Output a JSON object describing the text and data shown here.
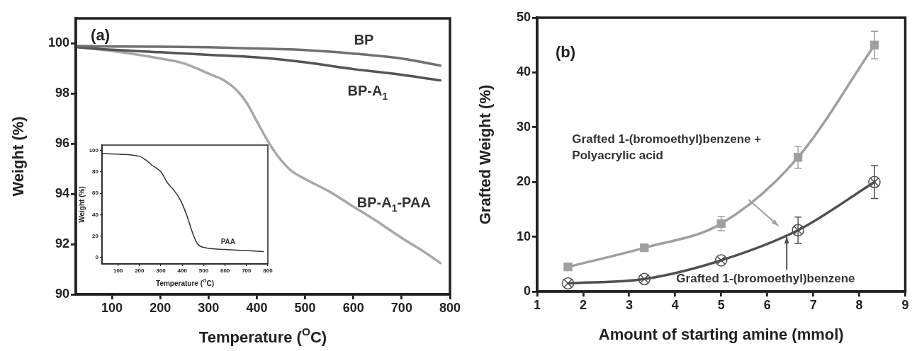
{
  "chart_data": [
    {
      "type": "line",
      "xlabel": "Temperature ($^{O}$C)",
      "ylabel": "Weight (%)",
      "annotations": [
        "(a)"
      ],
      "xlim": [
        25,
        800
      ],
      "ylim": [
        90,
        101
      ],
      "xticks": [
        100,
        200,
        300,
        400,
        500,
        600,
        700,
        800
      ],
      "yticks": [
        90,
        92,
        94,
        96,
        98,
        100
      ],
      "grid": false,
      "legend": false,
      "marker": "none",
      "line_style": "solid",
      "series": [
        {
          "name": "BP",
          "color": "#707070",
          "x": [
            30,
            100,
            200,
            300,
            400,
            500,
            600,
            700,
            780
          ],
          "values": [
            99.9,
            99.88,
            99.87,
            99.85,
            99.8,
            99.74,
            99.6,
            99.4,
            99.12
          ]
        },
        {
          "name": "BP-A$_{1}$",
          "color": "#555555",
          "x": [
            30,
            100,
            200,
            300,
            400,
            500,
            600,
            700,
            780
          ],
          "values": [
            99.85,
            99.75,
            99.65,
            99.55,
            99.45,
            99.25,
            98.98,
            98.75,
            98.53
          ]
        },
        {
          "name": "BP-A$_{1}$-PAA",
          "color": "#a8a8a8",
          "x": [
            30,
            100,
            200,
            250,
            300,
            330,
            360,
            380,
            400,
            420,
            440,
            470,
            500,
            550,
            600,
            650,
            700,
            750,
            780
          ],
          "values": [
            99.85,
            99.7,
            99.4,
            99.2,
            98.8,
            98.55,
            98.1,
            97.6,
            96.9,
            96.2,
            95.6,
            94.95,
            94.6,
            94.1,
            93.5,
            92.9,
            92.25,
            91.65,
            91.25
          ]
        }
      ]
    },
    {
      "type": "line",
      "xlabel": "Temperature ($^{O}$C)",
      "ylabel": "Weight (%)",
      "xlim": [
        25,
        800
      ],
      "ylim": [
        -6,
        105
      ],
      "xticks": [
        100,
        200,
        300,
        400,
        500,
        600,
        700,
        800
      ],
      "yticks": [
        0,
        20,
        40,
        60,
        80,
        100
      ],
      "grid": false,
      "legend": false,
      "marker": "none",
      "line_style": "solid",
      "series": [
        {
          "name": "PAA",
          "color": "#333333",
          "x": [
            30,
            100,
            200,
            230,
            260,
            300,
            330,
            360,
            390,
            420,
            450,
            470,
            500,
            600,
            700,
            780
          ],
          "values": [
            97,
            96.5,
            94.5,
            91,
            86,
            80,
            70,
            63,
            54,
            40,
            22,
            13,
            9.5,
            7.5,
            6.5,
            5.5
          ]
        }
      ]
    },
    {
      "type": "line",
      "xlabel": "Amount of starting amine (mmol)",
      "ylabel": "Grafted Weight (%)",
      "annotations": [
        "(b)"
      ],
      "xlim": [
        1,
        9
      ],
      "ylim": [
        0,
        50
      ],
      "xticks": [
        1,
        2,
        3,
        4,
        5,
        6,
        7,
        8,
        9
      ],
      "yticks": [
        0,
        10,
        20,
        30,
        40,
        50
      ],
      "grid": false,
      "legend": false,
      "line_style": "solid",
      "series": [
        {
          "name": "Grafted 1-(bromoethyl)benzene + Polyacrylic acid",
          "color": "#a0a0a0",
          "marker": "square",
          "x": [
            1.67,
            3.33,
            5,
            6.67,
            8.33
          ],
          "values": [
            4.5,
            8,
            12.4,
            24.5,
            45
          ],
          "errors": [
            null,
            null,
            1.3,
            2,
            2.5
          ]
        },
        {
          "name": "Grafted 1-(bromoethyl)benzene",
          "color": "#505050",
          "marker": "circle",
          "x": [
            1.67,
            3.33,
            5,
            6.67,
            8.33
          ],
          "values": [
            1.5,
            2.3,
            5.7,
            11.2,
            20
          ],
          "errors": [
            null,
            null,
            null,
            2.4,
            3
          ]
        }
      ]
    }
  ]
}
